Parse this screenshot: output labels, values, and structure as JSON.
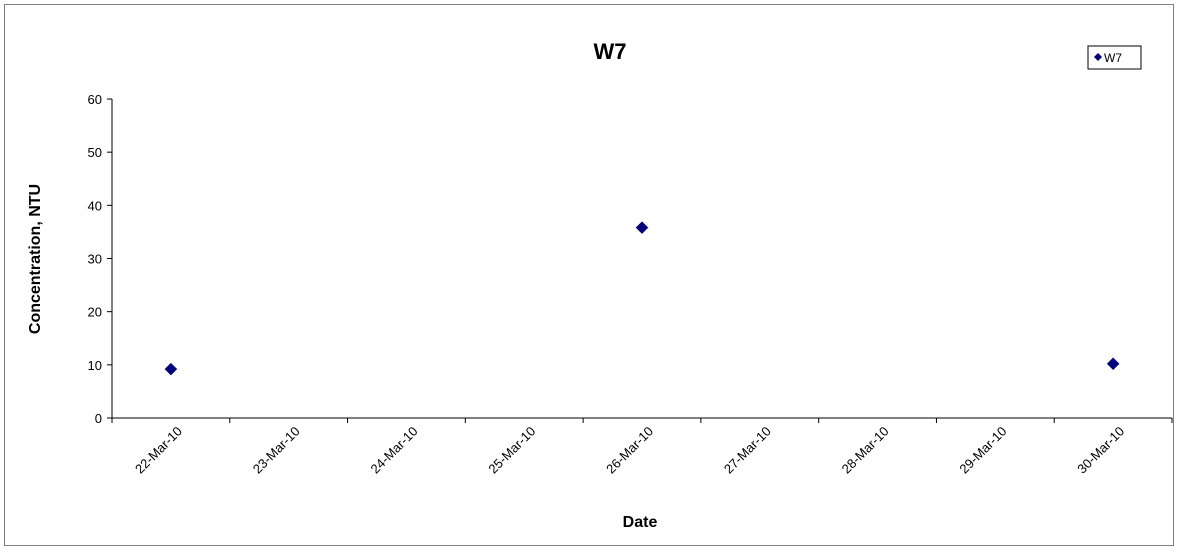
{
  "chart_data": {
    "type": "scatter",
    "title": "W7",
    "xlabel": "Date",
    "ylabel": "Concentration, NTU",
    "x_categories": [
      "22-Mar-10",
      "23-Mar-10",
      "24-Mar-10",
      "25-Mar-10",
      "26-Mar-10",
      "27-Mar-10",
      "28-Mar-10",
      "29-Mar-10",
      "30-Mar-10"
    ],
    "ylim": [
      0,
      60
    ],
    "yticks": [
      "0",
      "10",
      "20",
      "30",
      "40",
      "50",
      "60"
    ],
    "grid": false,
    "legend_position": "top-right",
    "series": [
      {
        "name": "W7",
        "color": "#000080",
        "marker": "diamond",
        "points": [
          {
            "x": "22-Mar-10",
            "y": 9.2
          },
          {
            "x": "26-Mar-10",
            "y": 35.8
          },
          {
            "x": "30-Mar-10",
            "y": 10.2
          }
        ]
      }
    ]
  }
}
